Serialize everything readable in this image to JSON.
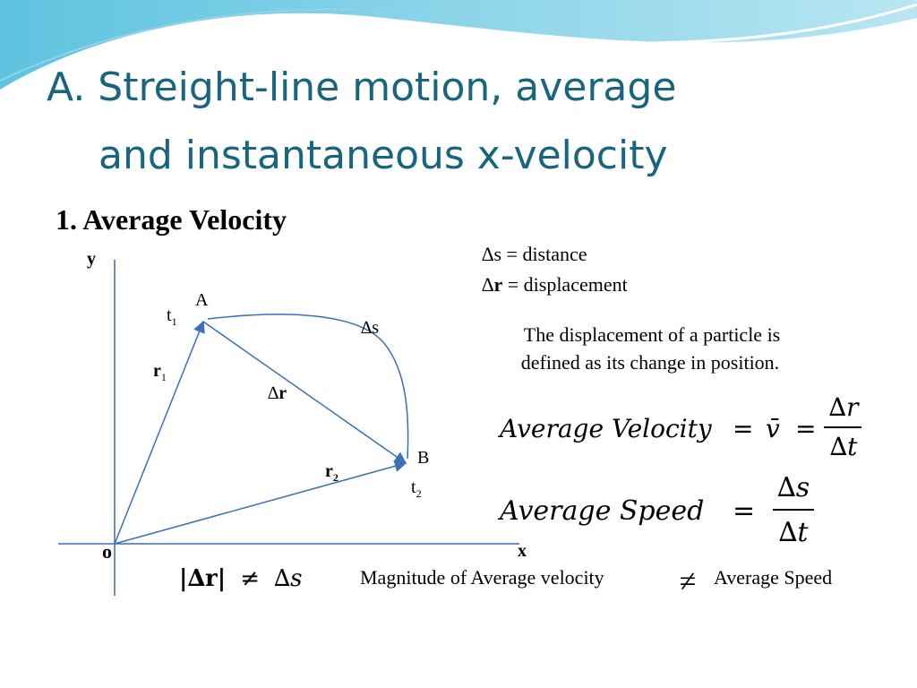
{
  "title": [
    "A. Streight-line motion, average",
    "and instantaneous x-velocity"
  ],
  "heading": "1. Average Velocity",
  "diagram": {
    "y_axis": "y",
    "x_axis": "x",
    "origin": "o",
    "point_a": "A",
    "point_b": "B",
    "t1": {
      "base": "t",
      "sub": "1"
    },
    "t2": {
      "base": "t",
      "sub": "2"
    },
    "r1": {
      "base": "r",
      "sub": "1"
    },
    "r2": {
      "base": "r",
      "sub": "2"
    },
    "delta_s": "∆s",
    "delta_r": {
      "delta": "∆",
      "var": "r"
    }
  },
  "definitions": [
    {
      "delta": "∆",
      "var": "s",
      "text": " = distance"
    },
    {
      "delta": "∆",
      "var": "r",
      "text": " = displacement"
    }
  ],
  "paragraph": [
    "The displacement of a particle is",
    "defined as its change in position."
  ],
  "formula_velocity": {
    "label": "Average Velocity",
    "eq1": "=",
    "symbol": "v̄",
    "eq2": "=",
    "numerator": "∆r",
    "denominator": "∆t"
  },
  "formula_speed": {
    "label": "Average Speed",
    "eq": "=",
    "numerator": "∆s",
    "denominator": "∆t"
  },
  "inequality": {
    "left": "|∆r|",
    "sign": "≠",
    "right": "∆s"
  },
  "statement": {
    "left": "Magnitude of Average velocity",
    "sign": "≠",
    "right": "Average Speed"
  }
}
